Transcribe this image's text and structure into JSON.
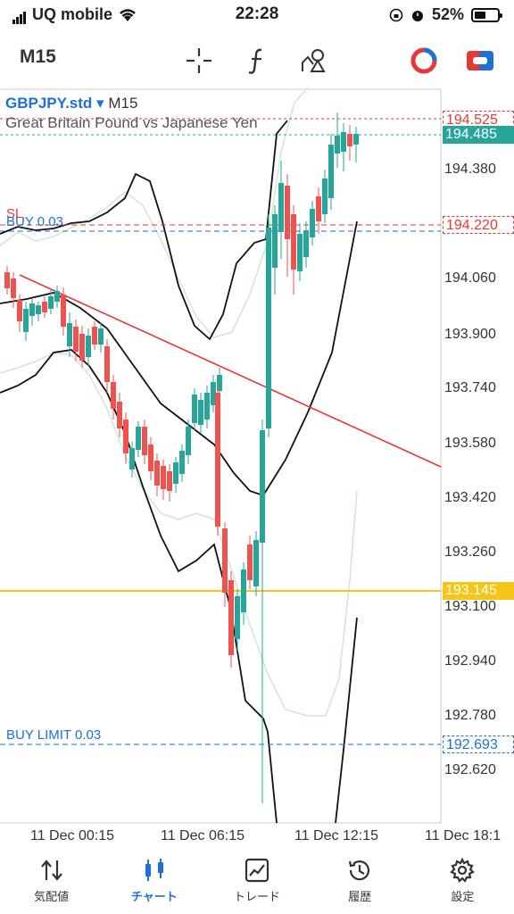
{
  "status_bar": {
    "carrier": "UQ mobile",
    "time": "22:28",
    "battery": "52%",
    "battery_level": 0.52
  },
  "toolbar": {
    "timeframe": "M15"
  },
  "chart_header": {
    "symbol": "GBPJPY.std",
    "dropdown": "▾",
    "timeframe": "M15",
    "description": "Great Britain Pound vs Japanese Yen"
  },
  "price_tags": {
    "ask": "194.525",
    "bid": "194.485",
    "sl": "194.220",
    "alert": "193.145",
    "limit": "192.693"
  },
  "order_labels": {
    "sl": "SL",
    "buy": "BUY 0.03",
    "buy_limit": "BUY LIMIT 0.03"
  },
  "y_axis": [
    "194.380",
    "194.060",
    "193.900",
    "193.740",
    "193.580",
    "193.420",
    "193.260",
    "193.100",
    "192.940",
    "192.780",
    "192.620"
  ],
  "x_axis": [
    "11 Dec 00:15",
    "11 Dec 06:15",
    "11 Dec 12:15",
    "11 Dec 18:1"
  ],
  "nav": [
    {
      "label": "気配値",
      "icon": "quotes-icon"
    },
    {
      "label": "チャート",
      "icon": "chart-icon"
    },
    {
      "label": "トレード",
      "icon": "trade-icon"
    },
    {
      "label": "履歴",
      "icon": "history-icon"
    },
    {
      "label": "設定",
      "icon": "settings-icon"
    }
  ],
  "colors": {
    "accent": "#1e6fd9",
    "up": "#26a69a",
    "down": "#ef5350",
    "alert": "#f5c518"
  }
}
